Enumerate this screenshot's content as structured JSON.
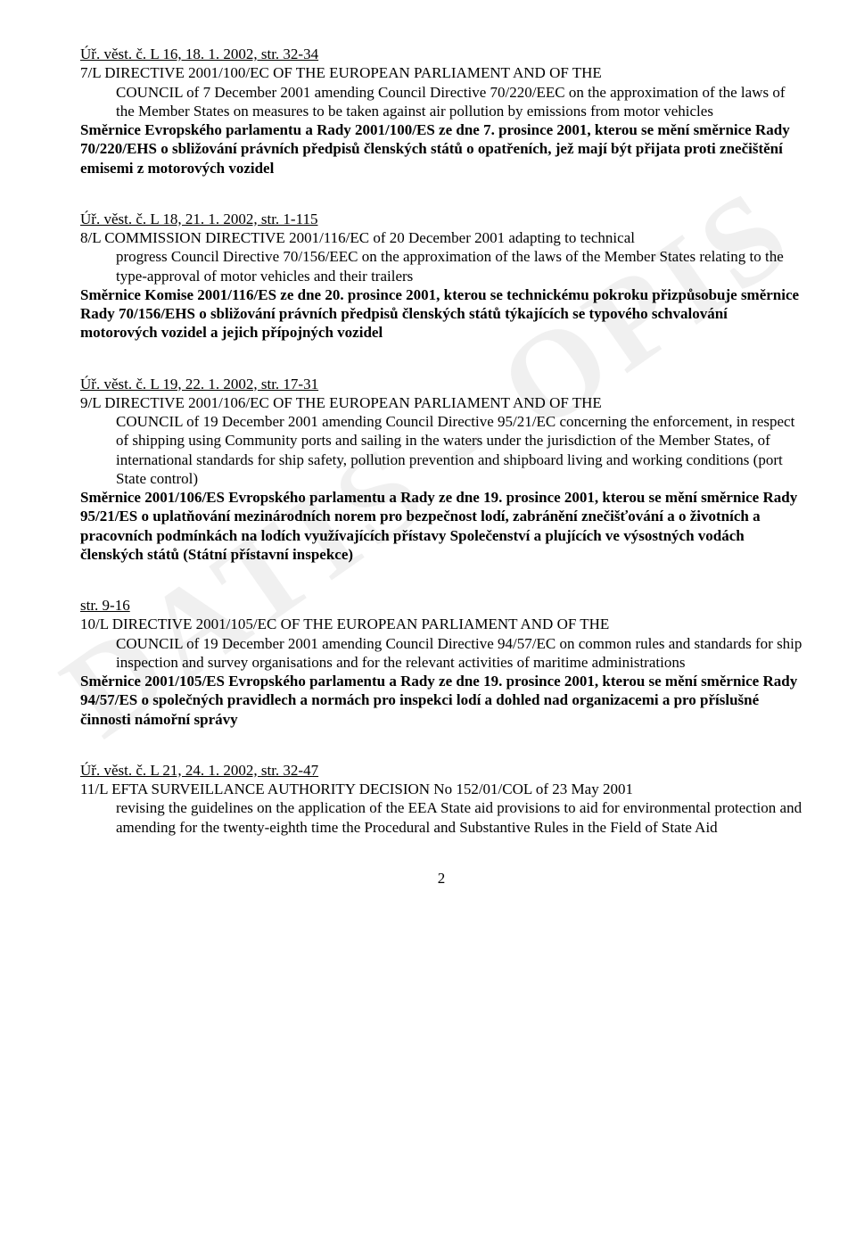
{
  "watermark": "DATIS - OPIS",
  "page_number": "2",
  "entries": [
    {
      "ref": "Úř. věst. č. L 16, 18. 1. 2002, str. 32-34",
      "en_title": "7/L DIRECTIVE 2001/100/EC OF THE EUROPEAN PARLIAMENT AND OF THE",
      "en_desc": "COUNCIL of 7 December 2001 amending Council Directive 70/220/EEC on the approximation of the laws of the Member States on measures to be taken against air pollution by emissions from motor vehicles",
      "cz": "Směrnice Evropského parlamentu a Rady 2001/100/ES ze dne 7. prosince 2001, kterou se mění směrnice Rady 70/220/EHS o sbližování právních předpisů členských států o opatřeních, jež mají být přijata proti znečištění emisemi z motorových vozidel"
    },
    {
      "ref": "Úř. věst. č. L 18, 21. 1. 2002, str. 1-115",
      "en_title": "8/L COMMISSION DIRECTIVE 2001/116/EC of 20 December 2001 adapting to technical",
      "en_desc": "progress Council Directive 70/156/EEC on the approximation of the laws of the Member States relating to the type-approval of motor vehicles and their trailers",
      "cz": "Směrnice Komise 2001/116/ES ze dne 20. prosince 2001, kterou se technickému pokroku přizpůsobuje směrnice Rady 70/156/EHS o sbližování právních předpisů členských států týkajících se typového schvalování motorových vozidel a jejich přípojných vozidel"
    },
    {
      "ref": "Úř. věst. č. L 19,  22. 1. 2002, str. 17-31",
      "en_title": "9/L DIRECTIVE 2001/106/EC OF THE EUROPEAN PARLIAMENT AND OF THE",
      "en_desc": "COUNCIL of 19 December 2001 amending Council Directive 95/21/EC concerning the enforcement, in respect of shipping using Community ports and sailing in the waters under the jurisdiction of the Member States, of international standards for ship safety, pollution prevention and shipboard living and working conditions (port State control)",
      "cz": "Směrnice 2001/106/ES Evropského parlamentu a Rady ze dne 19. prosince 2001, kterou se mění směrnice Rady 95/21/ES o uplatňování mezinárodních norem pro bezpečnost lodí, zabránění znečišťování a o životních a pracovních podmínkách na lodích využívajících přístavy Společenství a plujících ve výsostných vodách členských států (Státní přístavní inspekce)"
    },
    {
      "ref": "str. 9-16",
      "en_title": "10/L DIRECTIVE 2001/105/EC OF THE EUROPEAN PARLIAMENT AND OF THE",
      "en_desc": "COUNCIL of 19 December 2001 amending Council Directive 94/57/EC on common rules and standards for ship inspection and survey organisations and for the relevant activities of maritime administrations",
      "cz": "Směrnice 2001/105/ES Evropského parlamentu a Rady ze dne 19. prosince 2001, kterou se mění směrnice Rady 94/57/ES o společných pravidlech a normách pro inspekci lodí a dohled nad organizacemi a pro příslušné činnosti námořní správy"
    },
    {
      "ref": "Úř. věst. č. L 21, 24. 1. 2002, str. 32-47",
      "en_title": "11/L EFTA SURVEILLANCE AUTHORITY DECISION No 152/01/COL of 23 May 2001",
      "en_desc": "revising the guidelines on the application of the EEA State aid provisions to aid for environmental protection and amending for the twenty-eighth time the Procedural and Substantive Rules in the Field of State Aid",
      "cz": ""
    }
  ]
}
